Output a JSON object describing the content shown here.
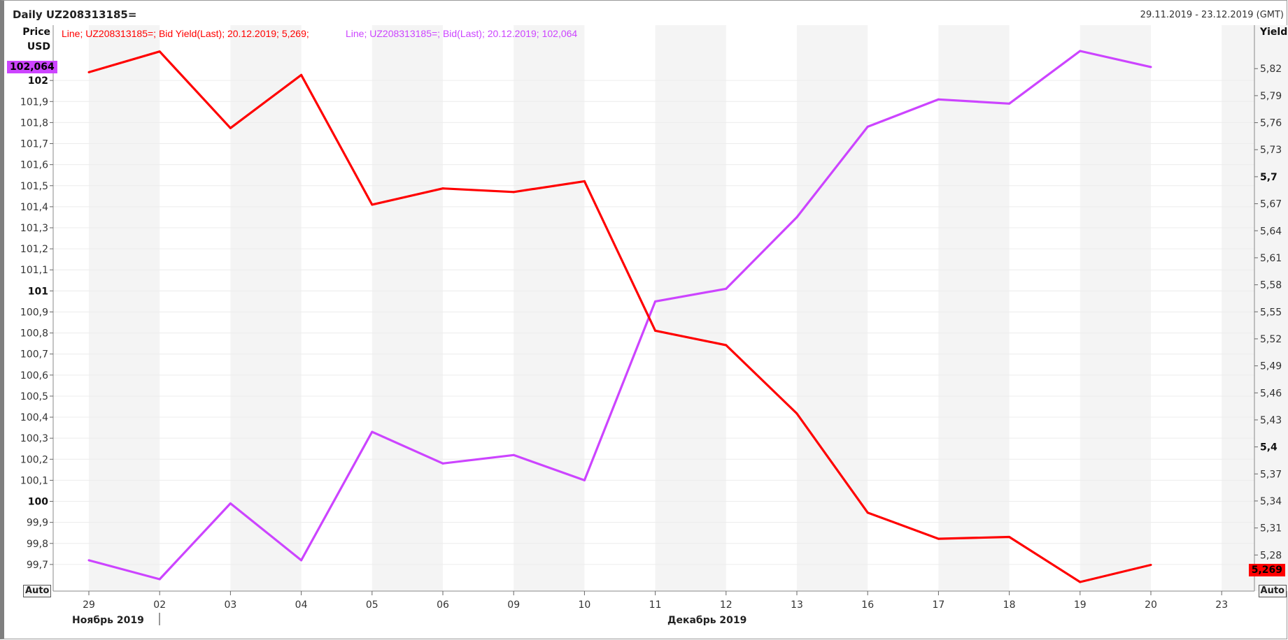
{
  "window": {
    "title": "Daily UZ208313185=",
    "date_range": "29.11.2019 - 23.12.2019 (GMT)"
  },
  "axes": {
    "left_title_1": "Price",
    "left_title_2": "USD",
    "right_title": "Yield",
    "auto_left": "Auto",
    "auto_right": "Auto",
    "month_label_1": "Ноябрь 2019",
    "month_label_2": "Декабрь 2019"
  },
  "legend": {
    "red_text": "Line; UZ208313185=; Bid Yield(Last); 20.12.2019; 5,269;",
    "purple_text": "Line; UZ208313185=; Bid(Last); 20.12.2019; 102,064"
  },
  "last_values": {
    "price_pill": "102,064",
    "yield_pill": "5,269"
  },
  "colors": {
    "yield_line": "#ff0000",
    "price_line": "#cc44ff",
    "band": "#f4f4f4"
  },
  "chart_data": {
    "type": "line",
    "categories": [
      "29",
      "02",
      "03",
      "04",
      "05",
      "06",
      "09",
      "10",
      "11",
      "12",
      "13",
      "16",
      "17",
      "18",
      "19",
      "20",
      "23"
    ],
    "series": [
      {
        "name": "Bid(Last)",
        "axis": "left",
        "values": [
          99.72,
          99.63,
          99.99,
          99.72,
          100.33,
          100.18,
          100.22,
          100.1,
          100.95,
          101.01,
          101.35,
          101.78,
          101.91,
          101.89,
          102.14,
          102.064,
          null
        ]
      },
      {
        "name": "Bid Yield(Last)",
        "axis": "right",
        "values": [
          5.816,
          5.839,
          5.754,
          5.813,
          5.669,
          5.687,
          5.683,
          5.695,
          5.529,
          5.513,
          5.437,
          5.327,
          5.298,
          5.3,
          5.25,
          5.269,
          null
        ]
      }
    ],
    "left_axis": {
      "ylim": [
        99.6,
        102.15
      ],
      "ticks": [
        "99,7",
        "99,8",
        "99,9",
        "100",
        "100,1",
        "100,2",
        "100,3",
        "100,4",
        "100,5",
        "100,6",
        "100,7",
        "100,8",
        "100,9",
        "101",
        "101,1",
        "101,2",
        "101,3",
        "101,4",
        "101,5",
        "101,6",
        "101,7",
        "101,8",
        "101,9",
        "102"
      ],
      "bold_ticks": [
        "100",
        "101",
        "102"
      ]
    },
    "right_axis": {
      "ylim": [
        5.25,
        5.845
      ],
      "ticks": [
        "5,28",
        "5,31",
        "5,34",
        "5,37",
        "5,4",
        "5,43",
        "5,46",
        "5,49",
        "5,52",
        "5,55",
        "5,58",
        "5,61",
        "5,64",
        "5,67",
        "5,7",
        "5,73",
        "5,76",
        "5,79",
        "5,82"
      ],
      "bold_ticks": [
        "5,4",
        "5,7"
      ]
    },
    "grid": true
  }
}
